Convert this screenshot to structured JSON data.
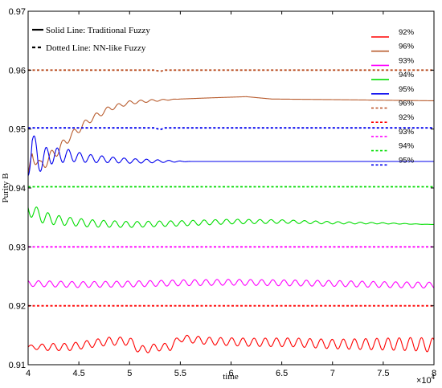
{
  "chart_data": {
    "type": "line",
    "xlabel": "time",
    "ylabel": "Purity B",
    "xlim": [
      40000,
      80000
    ],
    "ylim": [
      0.91,
      0.97
    ],
    "x_tick_labels": [
      "4",
      "4.5",
      "5",
      "5.5",
      "6",
      "6.5",
      "7",
      "7.5",
      "8"
    ],
    "x_multiplier": "×10",
    "x_multiplier_exp": "4",
    "y_tick_labels": [
      "0.91",
      "0.92",
      "0.93",
      "0.94",
      "0.95",
      "0.96",
      "0.97"
    ],
    "notes": [
      {
        "text": "Solid Line: Traditional Fuzzy",
        "style": "solid"
      },
      {
        "text": "Dotted Line: NN-like Fuzzy",
        "style": "dashed"
      }
    ],
    "series": [
      {
        "name": "92%",
        "style": "solid",
        "color": "#ff0000",
        "points": [
          [
            40000,
            0.913
          ],
          [
            41000,
            0.913
          ],
          [
            42000,
            0.913
          ],
          [
            44000,
            0.913
          ],
          [
            46000,
            0.9135
          ],
          [
            48000,
            0.914
          ],
          [
            50000,
            0.914
          ],
          [
            51000,
            0.9125
          ],
          [
            53000,
            0.913
          ],
          [
            54000,
            0.913
          ],
          [
            55000,
            0.9145
          ],
          [
            58000,
            0.914
          ],
          [
            62000,
            0.9138
          ],
          [
            66000,
            0.9138
          ],
          [
            70000,
            0.9135
          ],
          [
            74000,
            0.9135
          ],
          [
            78000,
            0.9135
          ],
          [
            80000,
            0.9133
          ]
        ],
        "osc": [
          [
            40000,
            0.0003
          ],
          [
            42000,
            0.0006
          ],
          [
            50000,
            0.0007
          ],
          [
            55000,
            0.0006
          ],
          [
            70000,
            0.0008
          ],
          [
            80000,
            0.0012
          ]
        ]
      },
      {
        "name": "96%",
        "style": "solid",
        "color": "#b85c2e",
        "points": [
          [
            40000,
            0.941
          ],
          [
            40400,
            0.946
          ],
          [
            41200,
            0.9435
          ],
          [
            42000,
            0.945
          ],
          [
            43000,
            0.9465
          ],
          [
            44000,
            0.9485
          ],
          [
            46000,
            0.9515
          ],
          [
            48000,
            0.9535
          ],
          [
            50000,
            0.9545
          ],
          [
            52000,
            0.9548
          ],
          [
            55000,
            0.9551
          ],
          [
            58000,
            0.9553
          ],
          [
            61500,
            0.9555
          ],
          [
            64000,
            0.9551
          ],
          [
            70000,
            0.955
          ],
          [
            80000,
            0.9548
          ]
        ],
        "osc": [
          [
            40000,
            0.0012
          ],
          [
            44000,
            0.0007
          ],
          [
            48000,
            0.0004
          ],
          [
            52000,
            0.0002
          ],
          [
            55000,
            0.0
          ],
          [
            80000,
            0.0
          ]
        ]
      },
      {
        "name": "93%",
        "style": "solid",
        "color": "#ff00ff",
        "points": [
          [
            40000,
            0.9238
          ],
          [
            45000,
            0.9236
          ],
          [
            50000,
            0.9237
          ],
          [
            55000,
            0.9239
          ],
          [
            60000,
            0.924
          ],
          [
            65000,
            0.9239
          ],
          [
            70000,
            0.9238
          ],
          [
            75000,
            0.9236
          ],
          [
            80000,
            0.9235
          ]
        ],
        "osc": [
          [
            40000,
            0.0005
          ],
          [
            80000,
            0.0005
          ]
        ]
      },
      {
        "name": "94%",
        "style": "solid",
        "color": "#00dd00",
        "points": [
          [
            40000,
            0.9365
          ],
          [
            40500,
            0.936
          ],
          [
            41500,
            0.935
          ],
          [
            43000,
            0.9345
          ],
          [
            46000,
            0.934
          ],
          [
            50000,
            0.9338
          ],
          [
            55000,
            0.934
          ],
          [
            60000,
            0.9343
          ],
          [
            65000,
            0.9343
          ],
          [
            70000,
            0.9341
          ],
          [
            75000,
            0.934
          ],
          [
            80000,
            0.9338
          ]
        ],
        "osc": [
          [
            40000,
            0.0012
          ],
          [
            44000,
            0.0007
          ],
          [
            50000,
            0.0005
          ],
          [
            60000,
            0.0004
          ],
          [
            70000,
            0.0002
          ],
          [
            80000,
            0.0
          ]
        ]
      },
      {
        "name": "95%",
        "style": "solid",
        "color": "#0000ee",
        "points": [
          [
            40000,
            0.944
          ],
          [
            40400,
            0.948
          ],
          [
            41000,
            0.9445
          ],
          [
            42000,
            0.9455
          ],
          [
            44000,
            0.9455
          ],
          [
            46000,
            0.945
          ],
          [
            48000,
            0.9448
          ],
          [
            50000,
            0.9446
          ],
          [
            55000,
            0.9445
          ],
          [
            60000,
            0.9445
          ],
          [
            70000,
            0.9445
          ],
          [
            80000,
            0.9445
          ]
        ],
        "osc": [
          [
            40000,
            0.0025
          ],
          [
            42000,
            0.0015
          ],
          [
            45000,
            0.0008
          ],
          [
            48000,
            0.0005
          ],
          [
            52000,
            0.0003
          ],
          [
            56000,
            0.0
          ],
          [
            80000,
            0.0
          ]
        ]
      },
      {
        "name": "96%",
        "style": "dashed",
        "color": "#b84a1e",
        "points": [
          [
            40000,
            0.96
          ],
          [
            52500,
            0.96
          ],
          [
            53000,
            0.9598
          ],
          [
            53500,
            0.96
          ],
          [
            80000,
            0.96
          ]
        ],
        "osc": []
      },
      {
        "name": "92%",
        "style": "dashed",
        "color": "#ff0000",
        "points": [
          [
            40000,
            0.92
          ],
          [
            80000,
            0.92
          ]
        ],
        "osc": []
      },
      {
        "name": "93%",
        "style": "dashed",
        "color": "#ff00ff",
        "points": [
          [
            40000,
            0.93
          ],
          [
            80000,
            0.93
          ]
        ],
        "osc": []
      },
      {
        "name": "94%",
        "style": "dashed",
        "color": "#00dd00",
        "points": [
          [
            40000,
            0.9402
          ],
          [
            80000,
            0.9402
          ]
        ],
        "osc": []
      },
      {
        "name": "95%",
        "style": "dashed",
        "color": "#0000ee",
        "points": [
          [
            40000,
            0.9502
          ],
          [
            52500,
            0.9502
          ],
          [
            53000,
            0.9499
          ],
          [
            53500,
            0.9502
          ],
          [
            80000,
            0.9502
          ]
        ],
        "osc": []
      }
    ]
  }
}
